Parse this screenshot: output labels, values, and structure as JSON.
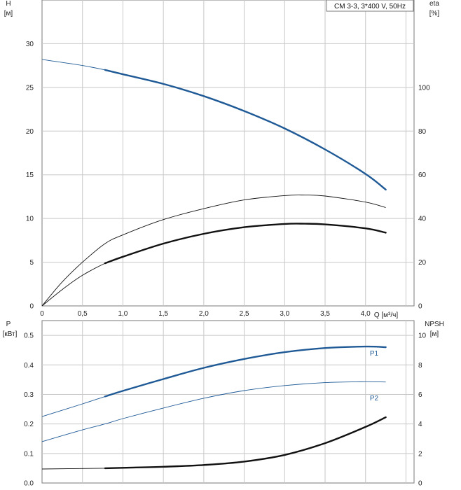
{
  "legend": {
    "text": "CM 3-3, 3*400 V, 50Hz"
  },
  "colors": {
    "blue": "#1f5a96",
    "black": "#111111",
    "grid": "#c8c8c8",
    "frame": "#7a7a7a"
  },
  "chart_data": [
    {
      "type": "line",
      "panel": "top",
      "x_axis": {
        "label": "Q [м³/ч]",
        "ticks": [
          "0",
          "0,5",
          "1,0",
          "1,5",
          "2,0",
          "2,5",
          "3,0",
          "3,5",
          "4,0"
        ],
        "range": [
          0,
          4.6
        ]
      },
      "y_axis_left": {
        "label_line1": "H",
        "label_line2": "[м]",
        "ticks": [
          "0",
          "5",
          "10",
          "15",
          "20",
          "25",
          "30"
        ],
        "range": [
          0,
          35
        ]
      },
      "y_axis_right": {
        "label_line1": "eta",
        "label_line2": "[%]",
        "ticks": [
          "0",
          "20",
          "40",
          "60",
          "80",
          "100"
        ],
        "range": [
          0,
          140
        ]
      },
      "grid": true,
      "series": [
        {
          "axis": "left",
          "color": "#1f5a96",
          "thin_x": [
            0,
            0.78
          ],
          "bold_x": [
            0.78,
            4.25
          ],
          "x": [
            0,
            0.5,
            0.78,
            1.0,
            1.5,
            2.0,
            2.5,
            3.0,
            3.5,
            4.0,
            4.25
          ],
          "y": [
            28.2,
            27.5,
            27.0,
            26.5,
            25.4,
            24.0,
            22.3,
            20.3,
            17.9,
            15.1,
            13.3
          ]
        },
        {
          "axis": "right",
          "color": "#111111",
          "thin_x": [
            0,
            4.25
          ],
          "bold_x": [],
          "x": [
            0,
            0.25,
            0.5,
            0.78,
            1.0,
            1.5,
            2.0,
            2.5,
            3.0,
            3.25,
            3.5,
            4.0,
            4.25
          ],
          "y": [
            0,
            11,
            20,
            28.5,
            32.5,
            39.5,
            44.5,
            48.5,
            50.5,
            50.7,
            50.3,
            47.5,
            45
          ]
        },
        {
          "axis": "right",
          "color": "#111111",
          "thin_x": [
            0,
            0.78
          ],
          "bold_x": [
            0.78,
            4.25
          ],
          "x": [
            0,
            0.25,
            0.5,
            0.78,
            1.0,
            1.5,
            2.0,
            2.5,
            3.0,
            3.25,
            3.5,
            4.0,
            4.25
          ],
          "y": [
            0,
            7.5,
            14,
            19.5,
            22.5,
            28.5,
            33,
            36,
            37.5,
            37.6,
            37.3,
            35.5,
            33.5
          ]
        }
      ]
    },
    {
      "type": "line",
      "panel": "bottom",
      "x_axis": {
        "label": "",
        "ticks": [],
        "range": [
          0,
          4.6
        ]
      },
      "y_axis_left": {
        "label_line1": "P",
        "label_line2": "[кВт]",
        "ticks": [
          "0.0",
          "0.1",
          "0.2",
          "0.3",
          "0.4",
          "0.5"
        ],
        "range": [
          0,
          0.55
        ]
      },
      "y_axis_right": {
        "label_line1": "NPSH",
        "label_line2": "[м]",
        "ticks": [
          "0",
          "2",
          "4",
          "6",
          "8",
          "10"
        ],
        "range": [
          0,
          11
        ]
      },
      "grid": true,
      "series": [
        {
          "name": "P1",
          "axis": "left",
          "color": "#1f5a96",
          "thin_x": [
            0,
            0.78
          ],
          "bold_x": [
            0.78,
            4.25
          ],
          "x": [
            0,
            0.5,
            0.78,
            1.0,
            1.5,
            2.0,
            2.5,
            3.0,
            3.5,
            4.0,
            4.25
          ],
          "y": [
            0.225,
            0.268,
            0.293,
            0.312,
            0.352,
            0.39,
            0.42,
            0.443,
            0.457,
            0.462,
            0.46
          ]
        },
        {
          "name": "P2",
          "axis": "left",
          "color": "#1f5a96",
          "thin_x": [
            0,
            0.78
          ],
          "bold_x": [],
          "x": [
            0,
            0.5,
            0.78,
            1.0,
            1.5,
            2.0,
            2.5,
            3.0,
            3.5,
            4.0,
            4.25
          ],
          "y": [
            0.14,
            0.18,
            0.2,
            0.218,
            0.254,
            0.287,
            0.313,
            0.33,
            0.34,
            0.343,
            0.342
          ]
        },
        {
          "axis": "right",
          "color": "#111111",
          "thin_x": [
            0,
            0.78
          ],
          "bold_x": [
            0.78,
            4.25
          ],
          "x": [
            0,
            0.78,
            1.0,
            1.5,
            2.0,
            2.5,
            3.0,
            3.5,
            4.0,
            4.25
          ],
          "y": [
            0.95,
            1.0,
            1.03,
            1.1,
            1.22,
            1.45,
            1.9,
            2.7,
            3.8,
            4.45
          ]
        }
      ]
    }
  ]
}
